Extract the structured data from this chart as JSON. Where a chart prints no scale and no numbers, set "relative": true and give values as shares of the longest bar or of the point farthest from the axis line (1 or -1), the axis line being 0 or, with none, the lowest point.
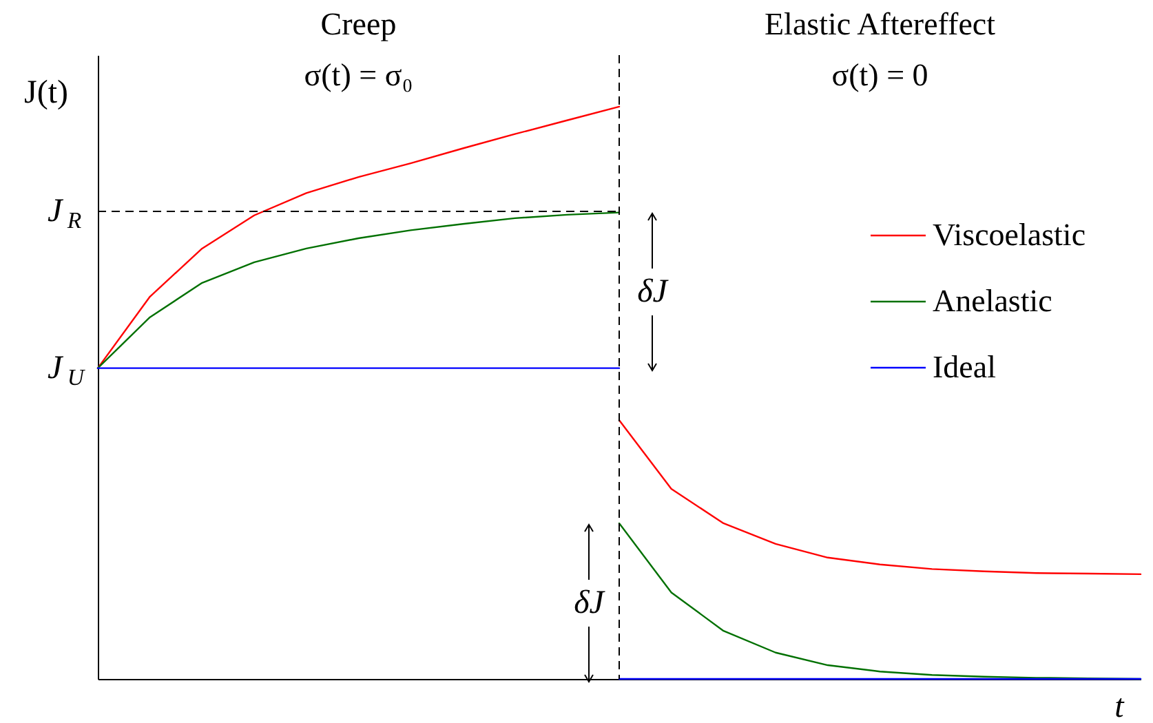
{
  "chart_data": {
    "type": "line",
    "relative": true,
    "xlabel": "t",
    "ylabel": "J(t)",
    "grid": false,
    "legend": "right",
    "categories": [
      null,
      null,
      null,
      null,
      null,
      null,
      null,
      null,
      null,
      null,
      null,
      null,
      null,
      null,
      null,
      null,
      null,
      null,
      null,
      null,
      null
    ],
    "series": [
      {
        "name": "Viscoelastic",
        "color": "#ff0000",
        "values": [
          0.543,
          0.668,
          0.752,
          0.81,
          0.849,
          0.877,
          0.901,
          0.927,
          0.952,
          0.976,
          1,
          null,
          null,
          null,
          null,
          null,
          null,
          null,
          null,
          null,
          null
        ]
      },
      {
        "name": "Anelastic",
        "color": "#007000",
        "values": [
          0.543,
          0.632,
          0.692,
          0.728,
          0.752,
          0.77,
          0.784,
          0.795,
          0.805,
          0.811,
          0.815,
          null,
          null,
          null,
          null,
          null,
          null,
          null,
          null,
          null,
          null
        ]
      },
      {
        "name": "Ideal",
        "color": "#0000ff",
        "values": [
          0.543,
          0.543,
          0.543,
          0.543,
          0.543,
          0.543,
          0.543,
          0.543,
          0.543,
          0.543,
          0.543,
          null,
          null,
          null,
          null,
          null,
          null,
          null,
          null,
          null,
          null
        ]
      },
      {
        "color": "#ff0000",
        "values": [
          null,
          null,
          null,
          null,
          null,
          null,
          null,
          null,
          null,
          null,
          0.452,
          0.332,
          0.272,
          0.236,
          0.212,
          0.2,
          0.192,
          0.188,
          0.185,
          0.184,
          0.183
        ]
      },
      {
        "color": "#007000",
        "values": [
          null,
          null,
          null,
          null,
          null,
          null,
          null,
          null,
          null,
          null,
          0.272,
          0.151,
          0.084,
          0.046,
          0.024,
          0.013,
          0.007,
          0.004,
          0.002,
          0.001,
          0
        ]
      },
      {
        "color": "#0000ff",
        "values": [
          null,
          null,
          null,
          null,
          null,
          null,
          null,
          null,
          null,
          null,
          0,
          0,
          0,
          0,
          0,
          0,
          0,
          0,
          0,
          0,
          0
        ]
      }
    ],
    "ref_lines": [
      {
        "axis": "x",
        "line_style": "dashed"
      },
      {
        "axis": "y",
        "value": 0.817,
        "label": "J$_{R}$",
        "line_style": "dashed"
      }
    ],
    "annotations": [
      "Creep",
      "σ(t) = σ₀",
      "Elastic Aftereffect",
      "σ(t) = 0",
      "δJ",
      "δJ",
      "J$_{U}$"
    ]
  }
}
